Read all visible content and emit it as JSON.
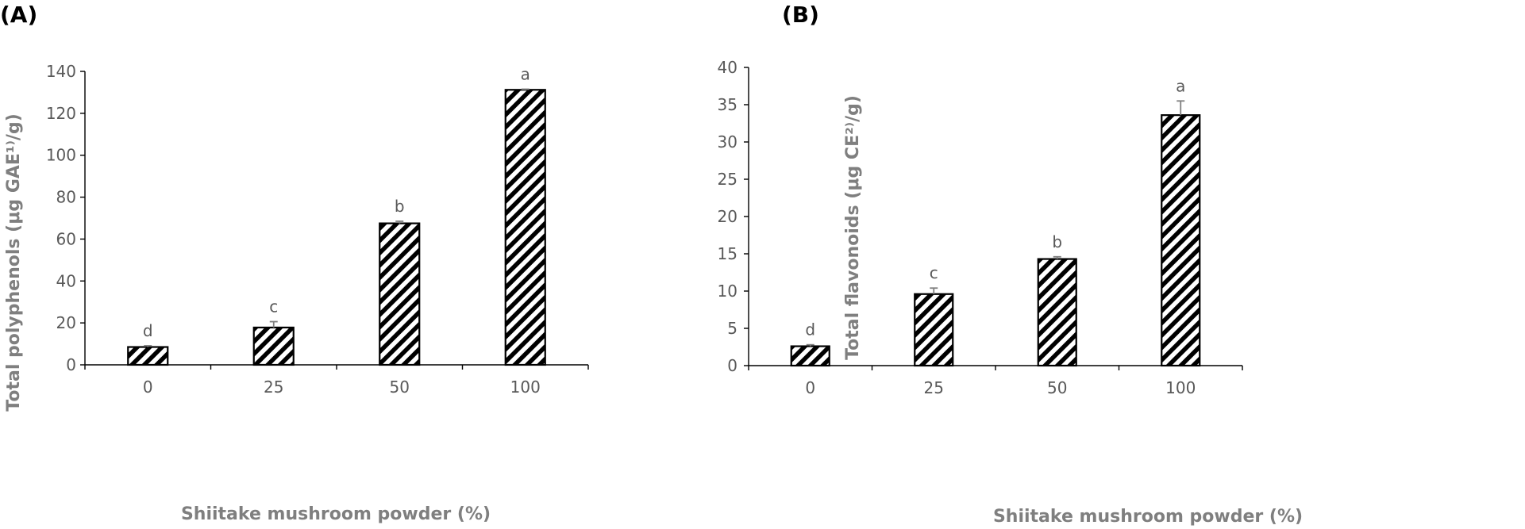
{
  "chart_data": [
    {
      "type": "bar",
      "panel_label": "(A)",
      "categories": [
        "0",
        "25",
        "50",
        "100"
      ],
      "values": [
        8.5,
        17.8,
        67.5,
        131.2
      ],
      "errors": [
        0.6,
        2.8,
        1.0,
        0.3
      ],
      "significance_letters": [
        "d",
        "c",
        "b",
        "a"
      ],
      "xlabel": "Shiitake mushroom powder (%)",
      "ylabel": "Total polyphenols (μg GAE¹⁾/g)",
      "ylim": [
        0,
        140
      ],
      "yticks": [
        0,
        20,
        40,
        60,
        80,
        100,
        120,
        140
      ],
      "grid": false,
      "legend": "none",
      "bar_fill": "diagonal-hatch",
      "bar_color": "#000000"
    },
    {
      "type": "bar",
      "panel_label": "(B)",
      "categories": [
        "0",
        "25",
        "50",
        "100"
      ],
      "values": [
        2.6,
        9.6,
        14.3,
        33.6
      ],
      "errors": [
        0.2,
        0.8,
        0.3,
        1.9
      ],
      "significance_letters": [
        "d",
        "c",
        "b",
        "a"
      ],
      "xlabel": "Shiitake mushroom powder (%)",
      "ylabel": "Total flavonoids (μg CE²⁾/g)",
      "ylim": [
        0,
        40
      ],
      "yticks": [
        0,
        5,
        10,
        15,
        20,
        25,
        30,
        35,
        40
      ],
      "grid": false,
      "legend": "none",
      "bar_fill": "diagonal-hatch",
      "bar_color": "#000000"
    }
  ]
}
